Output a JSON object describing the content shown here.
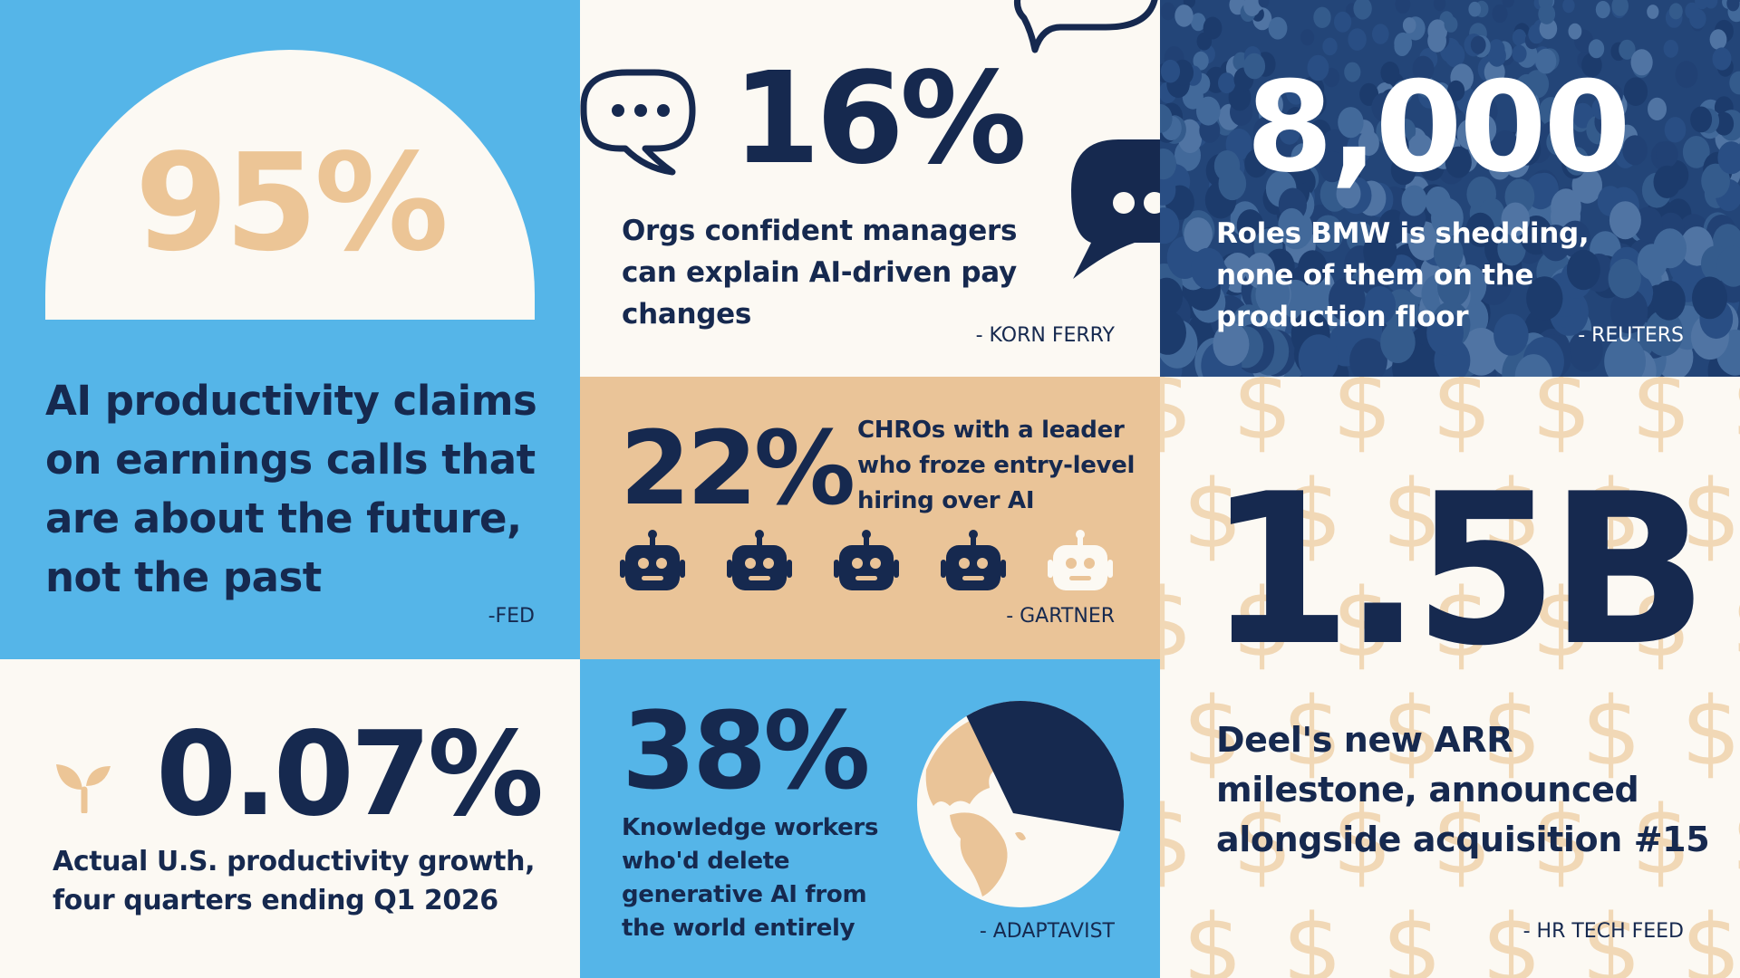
{
  "colors": {
    "navy": "#16294f",
    "sky_blue": "#55b5e8",
    "tan": "#eac498",
    "cream": "#fcf9f3",
    "light_tan": "#ecc596",
    "crowd_blue": "#2a4f80"
  },
  "stats": {
    "productivity_claims": {
      "value": "95%",
      "description": "AI productivity claims on earnings calls that are about the future, not the past",
      "source": "-FED"
    },
    "pay_changes": {
      "value": "16%",
      "description": "Orgs confident managers can explain AI-driven pay changes",
      "source": "- KORN FERRY",
      "icons": [
        "chat-bubble-dots-icon",
        "chat-bubble-icon",
        "chat-bubble-filled-icon"
      ]
    },
    "bmw_roles": {
      "value": "8,000",
      "description": "Roles BMW is shedding, none of them on the production floor",
      "source": "- REUTERS",
      "image": "crowd-photo"
    },
    "chro_hiring": {
      "value": "22%",
      "description": "CHROs with a leader who froze entry-level hiring over AI",
      "source": "- GARTNER",
      "robots_total": 5,
      "robots_highlighted": 4,
      "icon": "robot-icon"
    },
    "deel_arr": {
      "value": "1.5B",
      "description": "Deel's new ARR milestone, announced alongside acquisition #15",
      "source": "- HR TECH FEED",
      "pattern_icon": "dollar-sign-icon"
    },
    "productivity_growth": {
      "value": "0.07%",
      "description": "Actual U.S. productivity growth, four quarters ending Q1 2026",
      "icon": "sprout-icon"
    },
    "knowledge_workers": {
      "value": "38%",
      "description": "Knowledge workers who'd delete generative AI from the world entirely",
      "source": "- ADAPTAVIST",
      "share": 0.38,
      "icon": "globe-icon"
    }
  }
}
